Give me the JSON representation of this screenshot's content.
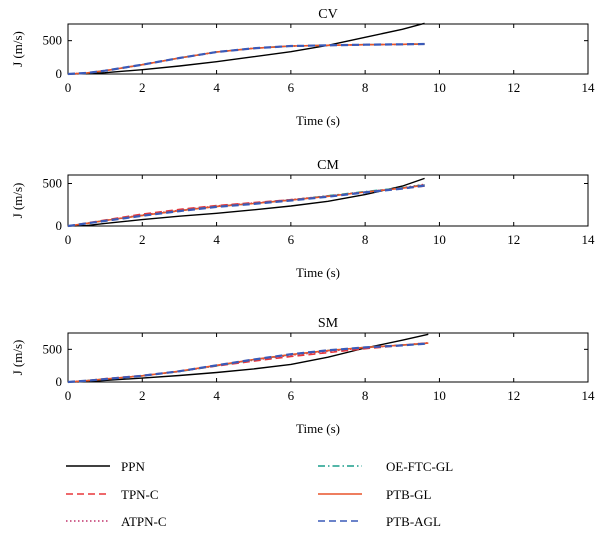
{
  "chart_data": [
    {
      "type": "line",
      "title": "CV",
      "xlabel": "Time (s)",
      "ylabel": "J (m/s)",
      "xlim": [
        0,
        14
      ],
      "ylim": [
        0,
        750
      ],
      "xticks": [
        0,
        2,
        4,
        6,
        8,
        10,
        12,
        14
      ],
      "yticks": [
        0,
        500
      ],
      "grid": false,
      "series": [
        {
          "name": "PPN",
          "x": [
            0,
            0.5,
            1,
            2,
            3,
            4,
            5,
            6,
            7,
            8,
            9,
            9.6
          ],
          "y": [
            0,
            5,
            20,
            65,
            120,
            185,
            260,
            335,
            430,
            550,
            670,
            760
          ]
        },
        {
          "name": "TPN-C",
          "x": [
            0,
            0.5,
            1,
            2,
            3,
            4,
            5,
            6,
            6.5,
            7,
            8,
            9,
            9.6
          ],
          "y": [
            0,
            15,
            50,
            140,
            240,
            330,
            385,
            420,
            425,
            430,
            440,
            445,
            450
          ]
        },
        {
          "name": "ATPN-C",
          "x": [
            0,
            0.5,
            1,
            2,
            3,
            4,
            5,
            6,
            6.5,
            7,
            8,
            9,
            9.6
          ],
          "y": [
            0,
            15,
            50,
            140,
            240,
            330,
            385,
            420,
            425,
            430,
            440,
            445,
            450
          ]
        },
        {
          "name": "OE-FTC-GL",
          "x": [
            0,
            0.5,
            1,
            2,
            3,
            4,
            5,
            6,
            6.5,
            7,
            8,
            9,
            9.6
          ],
          "y": [
            0,
            15,
            50,
            140,
            240,
            330,
            385,
            420,
            425,
            430,
            440,
            445,
            450
          ]
        },
        {
          "name": "PTB-GL",
          "x": [
            0,
            0.5,
            1,
            2,
            3,
            4,
            5,
            6,
            6.5,
            7,
            8,
            9,
            9.6
          ],
          "y": [
            0,
            15,
            50,
            140,
            240,
            330,
            385,
            420,
            425,
            430,
            440,
            445,
            450
          ]
        },
        {
          "name": "PTB-AGL",
          "x": [
            0,
            0.5,
            1,
            2,
            3,
            4,
            5,
            6,
            6.5,
            7,
            8,
            9,
            9.6
          ],
          "y": [
            0,
            15,
            50,
            140,
            240,
            330,
            385,
            420,
            425,
            430,
            440,
            445,
            450
          ]
        }
      ]
    },
    {
      "type": "line",
      "title": "CM",
      "xlabel": "Time (s)",
      "ylabel": "J (m/s)",
      "xlim": [
        0,
        14
      ],
      "ylim": [
        0,
        600
      ],
      "xticks": [
        0,
        2,
        4,
        6,
        8,
        10,
        12,
        14
      ],
      "yticks": [
        0,
        500
      ],
      "grid": false,
      "series": [
        {
          "name": "PPN",
          "x": [
            0,
            0.5,
            1,
            2,
            3,
            4,
            5,
            6,
            7,
            8,
            9,
            9.6
          ],
          "y": [
            0,
            5,
            30,
            75,
            115,
            150,
            190,
            235,
            290,
            370,
            470,
            560
          ]
        },
        {
          "name": "TPN-C",
          "x": [
            0,
            0.5,
            1,
            2,
            3,
            4,
            5,
            6,
            7,
            8,
            9,
            9.6
          ],
          "y": [
            0,
            35,
            70,
            140,
            195,
            240,
            275,
            310,
            350,
            395,
            440,
            470
          ]
        },
        {
          "name": "ATPN-C",
          "x": [
            0,
            0.5,
            1,
            2,
            3,
            4,
            5,
            6,
            7,
            8,
            9,
            9.6
          ],
          "y": [
            0,
            30,
            65,
            130,
            185,
            235,
            270,
            310,
            355,
            400,
            450,
            490
          ]
        },
        {
          "name": "OE-FTC-GL",
          "x": [
            0,
            0.5,
            1,
            2,
            3,
            4,
            5,
            6,
            7,
            8,
            9,
            9.6
          ],
          "y": [
            0,
            30,
            65,
            125,
            180,
            230,
            265,
            305,
            355,
            405,
            450,
            485
          ]
        },
        {
          "name": "PTB-GL",
          "x": [
            0,
            0.5,
            1,
            2,
            3,
            4,
            5,
            6,
            7,
            8,
            9,
            9.6
          ],
          "y": [
            0,
            30,
            65,
            125,
            180,
            230,
            265,
            305,
            350,
            400,
            445,
            480
          ]
        },
        {
          "name": "PTB-AGL",
          "x": [
            0,
            0.5,
            1,
            2,
            3,
            4,
            5,
            6,
            7,
            8,
            9,
            9.6
          ],
          "y": [
            0,
            30,
            60,
            120,
            175,
            225,
            260,
            300,
            345,
            395,
            440,
            475
          ]
        }
      ]
    },
    {
      "type": "line",
      "title": "SM",
      "xlabel": "Time (s)",
      "ylabel": "J (m/s)",
      "xlim": [
        0,
        14
      ],
      "ylim": [
        0,
        750
      ],
      "xticks": [
        0,
        2,
        4,
        6,
        8,
        10,
        12,
        14
      ],
      "yticks": [
        0,
        500
      ],
      "grid": false,
      "series": [
        {
          "name": "PPN",
          "x": [
            0,
            0.5,
            1,
            2,
            3,
            4,
            5,
            6,
            7,
            8,
            9,
            9.7
          ],
          "y": [
            0,
            5,
            25,
            60,
            100,
            145,
            200,
            270,
            380,
            520,
            640,
            730
          ]
        },
        {
          "name": "TPN-C",
          "x": [
            0,
            0.5,
            1,
            2,
            3,
            4,
            5,
            6,
            7,
            8,
            9,
            9.7
          ],
          "y": [
            0,
            20,
            50,
            100,
            165,
            245,
            320,
            390,
            450,
            510,
            560,
            600
          ]
        },
        {
          "name": "ATPN-C",
          "x": [
            0,
            0.5,
            1,
            2,
            3,
            4,
            5,
            6,
            7,
            8,
            9,
            9.7
          ],
          "y": [
            0,
            20,
            45,
            95,
            160,
            250,
            335,
            410,
            470,
            525,
            565,
            600
          ]
        },
        {
          "name": "OE-FTC-GL",
          "x": [
            0,
            0.5,
            1,
            2,
            3,
            4,
            5,
            6,
            7,
            8,
            9,
            9.7
          ],
          "y": [
            0,
            20,
            45,
            95,
            160,
            250,
            340,
            420,
            480,
            530,
            565,
            590
          ]
        },
        {
          "name": "PTB-GL",
          "x": [
            0,
            0.5,
            1,
            2,
            3,
            4,
            5,
            6,
            7,
            8,
            9,
            9.7
          ],
          "y": [
            0,
            20,
            45,
            95,
            165,
            255,
            345,
            420,
            480,
            530,
            565,
            595
          ]
        },
        {
          "name": "PTB-AGL",
          "x": [
            0,
            0.5,
            1,
            2,
            3,
            4,
            5,
            6,
            7,
            8,
            9,
            9.7
          ],
          "y": [
            0,
            20,
            45,
            95,
            165,
            255,
            345,
            425,
            485,
            530,
            560,
            590
          ]
        }
      ]
    }
  ],
  "legend": {
    "placement": "bottom",
    "items": [
      {
        "label": "PPN",
        "color": "#000000",
        "dash": "solid"
      },
      {
        "label": "OE-FTC-GL",
        "color": "#1a9e8c",
        "dash": "dashdot"
      },
      {
        "label": "TPN-C",
        "color": "#e8363a",
        "dash": "dashed"
      },
      {
        "label": "PTB-GL",
        "color": "#e8542a",
        "dash": "solid"
      },
      {
        "label": "ATPN-C",
        "color": "#c0306a",
        "dash": "dotted"
      },
      {
        "label": "PTB-AGL",
        "color": "#3a5ab8",
        "dash": "dashed"
      }
    ]
  },
  "series_styles": {
    "PPN": {
      "color": "#000000",
      "dash": "solid"
    },
    "TPN-C": {
      "color": "#e8363a",
      "dash": "dashed"
    },
    "ATPN-C": {
      "color": "#c0306a",
      "dash": "dotted"
    },
    "OE-FTC-GL": {
      "color": "#1a9e8c",
      "dash": "dashdot"
    },
    "PTB-GL": {
      "color": "#e8542a",
      "dash": "solid"
    },
    "PTB-AGL": {
      "color": "#3a5ab8",
      "dash": "dashed"
    }
  }
}
